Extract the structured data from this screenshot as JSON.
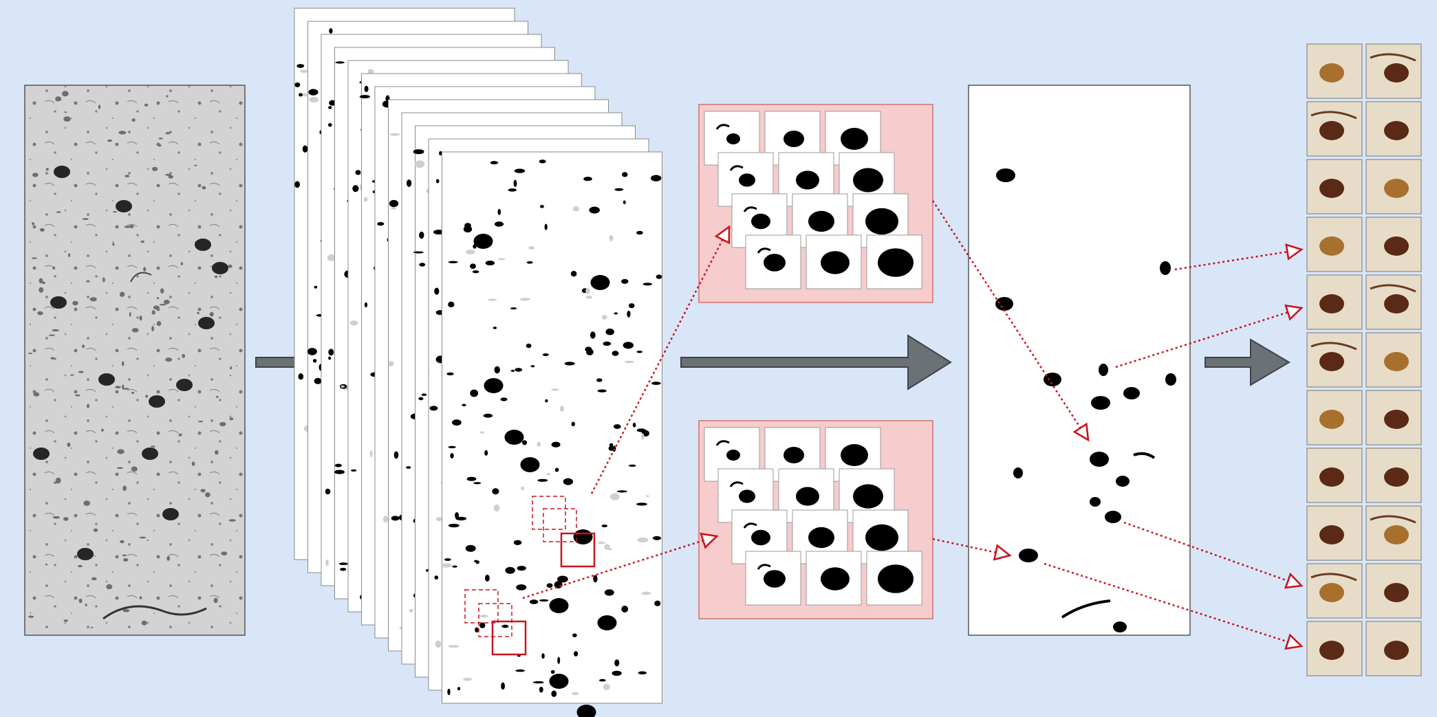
{
  "colors": {
    "background": "#d8e6f8",
    "flow_arrow_fill": "#6c7176",
    "flow_arrow_stroke": "#3e4347",
    "dotted_link": "#c8141e",
    "patch_panel_bg": "#f6cccc",
    "patch_panel_border": "#d88a8a",
    "grayscale_bg": "#d3d3d3",
    "blob": "#000000",
    "stain_brown": "#5a2a16",
    "tile_bg": "#e7dcc8"
  },
  "stages": [
    {
      "id": "grayscale-image",
      "icon": "grayscale-micrograph-icon"
    },
    {
      "id": "threshold-stack",
      "icon": "binary-threshold-stack-icon",
      "layers": 12
    },
    {
      "id": "patch-sequence-top",
      "icon": "patch-sequence-icon",
      "grid": [
        3,
        4
      ]
    },
    {
      "id": "patch-sequence-bottom",
      "icon": "patch-sequence-icon",
      "grid": [
        3,
        4
      ]
    },
    {
      "id": "segmentation-mask",
      "icon": "segmentation-mask-icon"
    },
    {
      "id": "cell-thumbnails",
      "icon": "thumbnail-grid-icon",
      "grid": [
        2,
        11
      ]
    }
  ]
}
